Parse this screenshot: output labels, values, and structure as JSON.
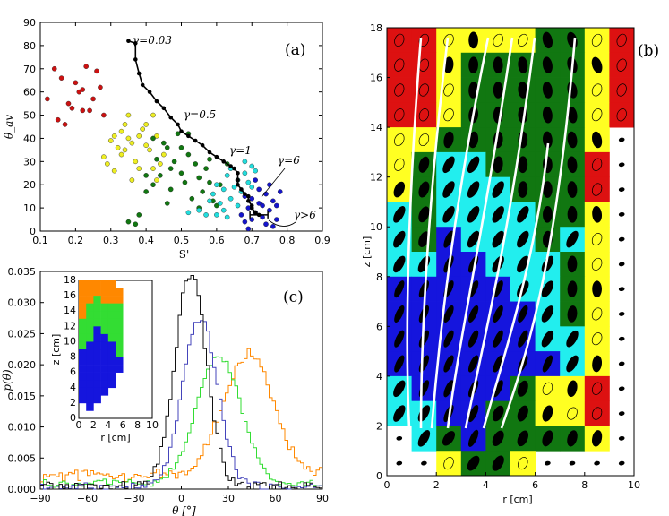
{
  "figure": {
    "panel_labels": {
      "a": "(a)",
      "b": "(b)",
      "c": "(c)"
    },
    "colors": {
      "red": "#dd1111",
      "yellow": "#ffff22",
      "green": "#117711",
      "cyan": "#22eeee",
      "blue": "#1515dd",
      "orange": "#ff8800",
      "lightgreen": "#33dd33",
      "black": "#000000",
      "white": "#ffffff"
    }
  },
  "chart_data": [
    {
      "id": "a",
      "type": "scatter",
      "xlabel": "S'",
      "ylabel": "θ_av",
      "xlim": [
        0.1,
        0.9
      ],
      "ylim": [
        0,
        90
      ],
      "xticks": [
        "0.1",
        "0.2",
        "0.3",
        "0.4",
        "0.5",
        "0.6",
        "0.7",
        "0.8",
        "0.9"
      ],
      "yticks": [
        "0",
        "10",
        "20",
        "30",
        "40",
        "50",
        "60",
        "70",
        "80",
        "90"
      ],
      "annotations": [
        "γ=0.03",
        "γ=0.5",
        "γ=1",
        "γ=6",
        "γ>6"
      ],
      "series": [
        {
          "name": "red",
          "color": "#cc1111",
          "points": [
            [
              0.12,
              57
            ],
            [
              0.14,
              70
            ],
            [
              0.16,
              66
            ],
            [
              0.15,
              48
            ],
            [
              0.19,
              53
            ],
            [
              0.2,
              64
            ],
            [
              0.21,
              60
            ],
            [
              0.22,
              61
            ],
            [
              0.23,
              71
            ],
            [
              0.24,
              52
            ],
            [
              0.25,
              57
            ],
            [
              0.26,
              69
            ],
            [
              0.27,
              62
            ],
            [
              0.22,
              52
            ],
            [
              0.18,
              55
            ],
            [
              0.28,
              50
            ],
            [
              0.17,
              46
            ]
          ]
        },
        {
          "name": "yellow",
          "color": "#eeee22",
          "points": [
            [
              0.28,
              32
            ],
            [
              0.29,
              29
            ],
            [
              0.3,
              39
            ],
            [
              0.31,
              41
            ],
            [
              0.32,
              36
            ],
            [
              0.33,
              33
            ],
            [
              0.34,
              46
            ],
            [
              0.35,
              50
            ],
            [
              0.35,
              40
            ],
            [
              0.36,
              38
            ],
            [
              0.37,
              30
            ],
            [
              0.38,
              41
            ],
            [
              0.39,
              44
            ],
            [
              0.4,
              37
            ],
            [
              0.41,
              35
            ],
            [
              0.42,
              27
            ],
            [
              0.43,
              22
            ],
            [
              0.44,
              29
            ],
            [
              0.45,
              33
            ],
            [
              0.36,
              22
            ],
            [
              0.38,
              27
            ],
            [
              0.4,
              46
            ],
            [
              0.42,
              50
            ],
            [
              0.31,
              26
            ],
            [
              0.34,
              35
            ],
            [
              0.43,
              41
            ],
            [
              0.33,
              43
            ]
          ]
        },
        {
          "name": "green",
          "color": "#117711",
          "points": [
            [
              0.35,
              4
            ],
            [
              0.37,
              3
            ],
            [
              0.4,
              17
            ],
            [
              0.42,
              20
            ],
            [
              0.43,
              31
            ],
            [
              0.45,
              38
            ],
            [
              0.46,
              36
            ],
            [
              0.47,
              27
            ],
            [
              0.48,
              30
            ],
            [
              0.49,
              42
            ],
            [
              0.5,
              25
            ],
            [
              0.51,
              21
            ],
            [
              0.52,
              33
            ],
            [
              0.53,
              14
            ],
            [
              0.54,
              29
            ],
            [
              0.55,
              23
            ],
            [
              0.56,
              17
            ],
            [
              0.57,
              27
            ],
            [
              0.58,
              21
            ],
            [
              0.59,
              13
            ],
            [
              0.6,
              11
            ],
            [
              0.61,
              20
            ],
            [
              0.47,
              18
            ],
            [
              0.44,
              24
            ],
            [
              0.5,
              36
            ],
            [
              0.55,
              10
            ],
            [
              0.42,
              40
            ],
            [
              0.46,
              12
            ],
            [
              0.58,
              31
            ],
            [
              0.4,
              24
            ],
            [
              0.38,
              7
            ],
            [
              0.52,
              42
            ],
            [
              0.63,
              29
            ]
          ]
        },
        {
          "name": "cyan",
          "color": "#22dddd",
          "points": [
            [
              0.52,
              8
            ],
            [
              0.55,
              9
            ],
            [
              0.57,
              7
            ],
            [
              0.58,
              13
            ],
            [
              0.6,
              20
            ],
            [
              0.61,
              12
            ],
            [
              0.62,
              18
            ],
            [
              0.63,
              24
            ],
            [
              0.64,
              14
            ],
            [
              0.65,
              19
            ],
            [
              0.66,
              22
            ],
            [
              0.67,
              17
            ],
            [
              0.68,
              25
            ],
            [
              0.69,
              21
            ],
            [
              0.7,
              28
            ],
            [
              0.71,
              26
            ],
            [
              0.6,
              7
            ],
            [
              0.62,
              9
            ],
            [
              0.63,
              6
            ],
            [
              0.66,
              11
            ],
            [
              0.64,
              27
            ],
            [
              0.68,
              30
            ],
            [
              0.7,
              19
            ],
            [
              0.59,
              16
            ]
          ]
        },
        {
          "name": "blue",
          "color": "#1515cc",
          "points": [
            [
              0.67,
              7
            ],
            [
              0.68,
              4
            ],
            [
              0.69,
              10
            ],
            [
              0.7,
              14
            ],
            [
              0.71,
              8
            ],
            [
              0.72,
              12
            ],
            [
              0.73,
              6
            ],
            [
              0.74,
              16
            ],
            [
              0.75,
              9
            ],
            [
              0.76,
              13
            ],
            [
              0.77,
              5
            ],
            [
              0.78,
              17
            ],
            [
              0.7,
              5
            ],
            [
              0.72,
              18
            ],
            [
              0.74,
              3
            ],
            [
              0.75,
              20
            ],
            [
              0.73,
              11
            ],
            [
              0.71,
              22
            ],
            [
              0.76,
              2
            ],
            [
              0.69,
              1
            ],
            [
              0.77,
              11
            ],
            [
              0.68,
              15
            ]
          ]
        },
        {
          "name": "gamma-curve",
          "color": "#000000",
          "line": true,
          "points": [
            [
              0.35,
              82
            ],
            [
              0.37,
              81
            ],
            [
              0.37,
              74
            ],
            [
              0.38,
              68
            ],
            [
              0.39,
              63
            ],
            [
              0.41,
              60
            ],
            [
              0.43,
              56
            ],
            [
              0.45,
              53
            ],
            [
              0.47,
              49
            ],
            [
              0.49,
              46
            ],
            [
              0.5,
              43
            ],
            [
              0.52,
              41
            ],
            [
              0.54,
              39
            ],
            [
              0.56,
              37
            ],
            [
              0.58,
              34
            ],
            [
              0.6,
              32
            ],
            [
              0.62,
              30
            ],
            [
              0.64,
              28
            ],
            [
              0.65,
              27
            ],
            [
              0.66,
              25
            ],
            [
              0.66,
              22
            ],
            [
              0.66,
              20
            ],
            [
              0.67,
              18
            ],
            [
              0.68,
              16
            ],
            [
              0.69,
              15
            ],
            [
              0.69,
              13
            ],
            [
              0.7,
              11
            ],
            [
              0.7,
              10
            ],
            [
              0.71,
              8
            ],
            [
              0.72,
              7
            ]
          ]
        }
      ]
    },
    {
      "id": "b",
      "type": "heatmap",
      "xlabel": "r [cm]",
      "ylabel": "z [cm]",
      "xlim": [
        0,
        10
      ],
      "ylim": [
        0,
        18
      ],
      "xticks": [
        "0",
        "2",
        "4",
        "6",
        "8",
        "10"
      ],
      "yticks": [
        "0",
        "2",
        "4",
        "6",
        "8",
        "10",
        "12",
        "14",
        "16",
        "18"
      ],
      "cell_size_cm": 1,
      "color_key": {
        "R": "red",
        "Y": "yellow",
        "G": "green",
        "C": "cyan",
        "B": "blue",
        ".": "white"
      },
      "rows_top_to_bottom": [
        "RRYYYYGGYR",
        "RRYGGGGGYR",
        "RRYGGGGGYR",
        "RRYGGGGGYR",
        "YYGGGGGGY.",
        "YGCCGGGGR.",
        "YGCCCGGGR.",
        "CGCCCCGGY.",
        "CGBCCCGCY.",
        "CCBBCCCGY.",
        "BBBBBCCGY.",
        "BBBBBBCGY.",
        "BBBBBBCCY.",
        "BBBBBBBCY.",
        "CBBBBGYYR.",
        "CCBBGGYYR.",
        ".CGBGGGGY.",
        "..YGGY...."
      ],
      "streamlines_count": 7
    },
    {
      "id": "c",
      "type": "line",
      "xlabel": "θ [°]",
      "ylabel": "p(θ)",
      "xlim": [
        -90,
        90
      ],
      "ylim": [
        0,
        0.035
      ],
      "xticks": [
        "−90",
        "−60",
        "−30",
        "0",
        "30",
        "60",
        "90"
      ],
      "yticks": [
        "0.000",
        "0.005",
        "0.010",
        "0.015",
        "0.020",
        "0.025",
        "0.030",
        "0.035"
      ],
      "series": [
        {
          "name": "black",
          "color": "#111111",
          "peak": 0.0345,
          "center": 5,
          "width": 10
        },
        {
          "name": "blue",
          "color": "#4444bb",
          "peak": 0.0272,
          "center": 11,
          "width": 11
        },
        {
          "name": "green",
          "color": "#33dd33",
          "peak": 0.0205,
          "center": 23,
          "width": 14
        },
        {
          "name": "orange",
          "color": "#ff8800",
          "peak": 0.0198,
          "center": 42,
          "width": 16
        }
      ],
      "inset": {
        "xlabel": "r [cm]",
        "ylabel": "z [cm]",
        "xticks": [
          "0",
          "2",
          "4",
          "6",
          "8",
          "10"
        ],
        "yticks": [
          "0",
          "2",
          "4",
          "6",
          "8",
          "10",
          "12",
          "14",
          "16",
          "18"
        ],
        "color_key": {
          "O": "orange",
          "G": "lightgreen",
          "B": "blue",
          ".": "white"
        },
        "rows_top_to_bottom": [
          "OOOOO.",
          "OOOOOO",
          "OOGOOO",
          "OGGGGG",
          "OGGGGG",
          "GGGGGG",
          "GGBGGG",
          "GGBBGG",
          "GBBBBG",
          "BBBBBG",
          "BBBBBB",
          "BBBBBB",
          "BBBBB.",
          "BBBBB.",
          "BBBB..",
          "BBB...",
          ".B...."
        ]
      }
    }
  ]
}
